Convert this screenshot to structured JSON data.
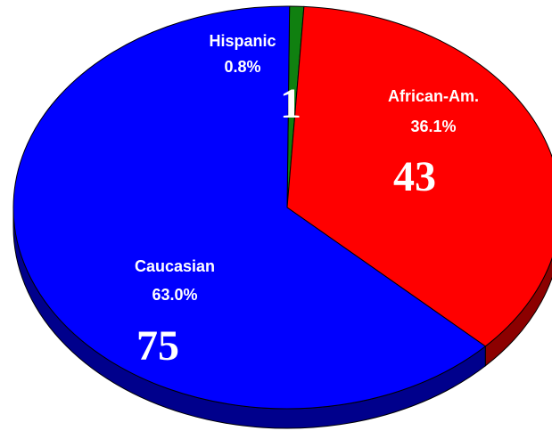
{
  "chart_data": {
    "type": "pie",
    "style": "3d",
    "slices": [
      {
        "name": "Hispanic",
        "percent_label": "0.8%",
        "count_label": "1",
        "value": 1,
        "color": "#108010",
        "side_color": "#0a5a0a"
      },
      {
        "name": "African-Am.",
        "percent_label": "36.1%",
        "count_label": "43",
        "value": 43,
        "color": "#ff0000",
        "side_color": "#8c0000"
      },
      {
        "name": "Caucasian",
        "percent_label": "63.0%",
        "count_label": "75",
        "value": 75,
        "color": "#0000ff",
        "side_color": "#00008c"
      }
    ]
  }
}
